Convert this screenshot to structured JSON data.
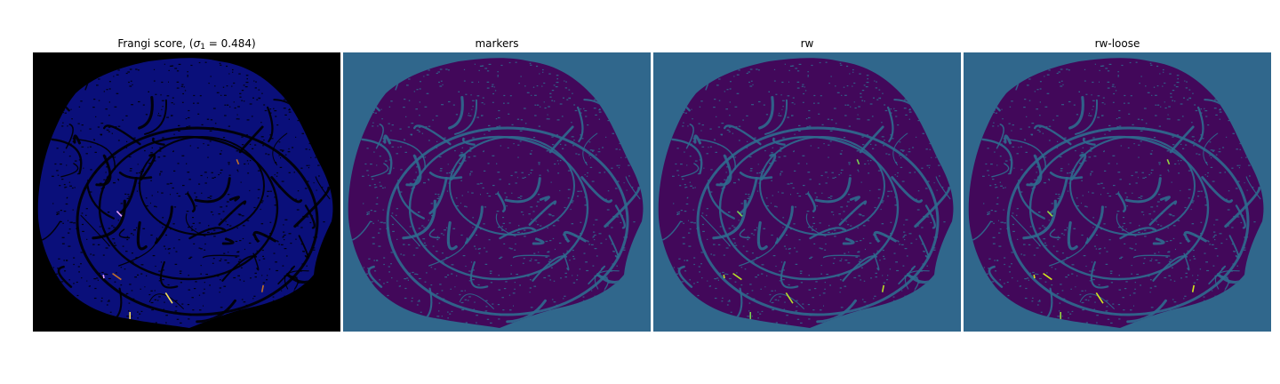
{
  "figure": {
    "panels": [
      {
        "id": "frangi",
        "title_prefix": "Frangi score, (",
        "title_symbol": "σ",
        "title_subscript": "1",
        "title_suffix": " = 0.484)",
        "colormap": "gnuplot2",
        "background_color": "#000000",
        "blob_color": "#0a0f7a",
        "line_color": "#000000",
        "highlight_colors": [
          "#c0702a",
          "#e9a0ff",
          "#f5e05a"
        ]
      },
      {
        "id": "markers",
        "title": "markers",
        "colormap": "viridis",
        "background_color": "#30678c",
        "blob_color": "#42085a",
        "line_color": "#2f6c8e",
        "highlight_colors": []
      },
      {
        "id": "rw",
        "title": "rw",
        "colormap": "viridis",
        "background_color": "#30678c",
        "blob_color": "#42085a",
        "line_color": "#2f6c8e",
        "highlight_colors": [
          "#b8de29",
          "#7ad151"
        ]
      },
      {
        "id": "rw-loose",
        "title": "rw-loose",
        "colormap": "viridis",
        "background_color": "#30678c",
        "blob_color": "#42085a",
        "line_color": "#2f6c8e",
        "highlight_colors": [
          "#d4e81d",
          "#95d840"
        ]
      }
    ]
  }
}
